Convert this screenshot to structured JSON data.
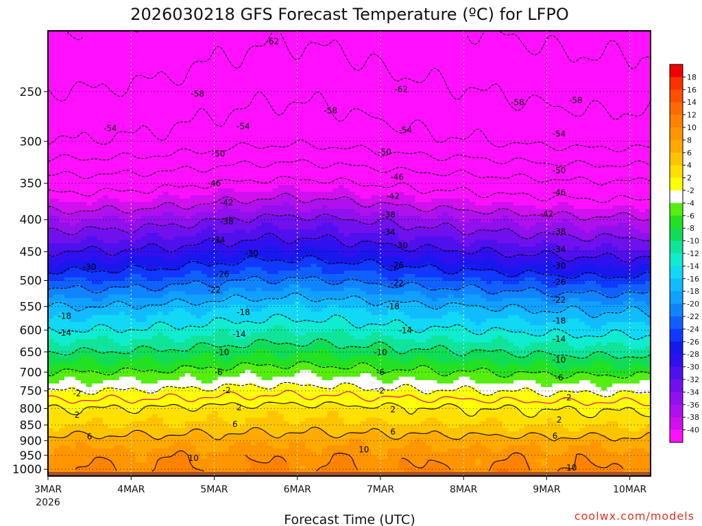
{
  "chart_data": {
    "type": "heatmap",
    "title": "2026030218 GFS Forecast Temperature (ºC) for LFPO",
    "xlabel": "Forecast Time (UTC)",
    "ylabel": "",
    "yscale": "log",
    "ylim": [
      1025,
      200
    ],
    "y_ticks": [
      250,
      300,
      350,
      400,
      450,
      500,
      550,
      600,
      650,
      700,
      750,
      800,
      850,
      900,
      950,
      1000
    ],
    "x_ticks": [
      "3MAR",
      "4MAR",
      "5MAR",
      "6MAR",
      "7MAR",
      "8MAR",
      "9MAR",
      "10MAR"
    ],
    "x_tick_sublabel": "2026",
    "grid": true,
    "levels_hpa": [
      250,
      300,
      350,
      400,
      450,
      500,
      550,
      600,
      650,
      700,
      750,
      800,
      850,
      900,
      950,
      1000
    ],
    "representative_temperature_c": [
      -58,
      -54,
      -44,
      -36,
      -30,
      -24,
      -18,
      -14,
      -10,
      -6,
      -2,
      2,
      4,
      7,
      9,
      10
    ],
    "contours_c": [
      -62,
      -58,
      -54,
      -50,
      -46,
      -42,
      -38,
      -34,
      -30,
      -26,
      -22,
      -18,
      -14,
      -10,
      -6,
      -2,
      2,
      6,
      10
    ],
    "contour_labels": [
      {
        "text": "-62",
        "day": 5.7,
        "p": 208
      },
      {
        "text": "-62",
        "day": 7.25,
        "p": 248
      },
      {
        "text": "-58",
        "day": 4.8,
        "p": 252
      },
      {
        "text": "-58",
        "day": 6.4,
        "p": 268
      },
      {
        "text": "-58",
        "day": 8.65,
        "p": 260
      },
      {
        "text": "-58",
        "day": 9.35,
        "p": 258
      },
      {
        "text": "-54",
        "day": 3.75,
        "p": 286
      },
      {
        "text": "-54",
        "day": 5.35,
        "p": 284
      },
      {
        "text": "-54",
        "day": 7.3,
        "p": 288
      },
      {
        "text": "-54",
        "day": 9.15,
        "p": 292
      },
      {
        "text": "-50",
        "day": 5.05,
        "p": 314
      },
      {
        "text": "-50",
        "day": 7.05,
        "p": 312
      },
      {
        "text": "-50",
        "day": 9.15,
        "p": 334
      },
      {
        "text": "-46",
        "day": 5.0,
        "p": 350
      },
      {
        "text": "-46",
        "day": 7.2,
        "p": 342
      },
      {
        "text": "-46",
        "day": 9.15,
        "p": 362
      },
      {
        "text": "-42",
        "day": 5.15,
        "p": 376
      },
      {
        "text": "-42",
        "day": 7.15,
        "p": 367
      },
      {
        "text": "-42",
        "day": 9.0,
        "p": 392
      },
      {
        "text": "-38",
        "day": 5.15,
        "p": 403
      },
      {
        "text": "-38",
        "day": 7.1,
        "p": 393
      },
      {
        "text": "-38",
        "day": 9.15,
        "p": 418
      },
      {
        "text": "-34",
        "day": 5.05,
        "p": 431
      },
      {
        "text": "-34",
        "day": 7.1,
        "p": 419
      },
      {
        "text": "-34",
        "day": 9.15,
        "p": 446
      },
      {
        "text": "-30",
        "day": 3.5,
        "p": 476
      },
      {
        "text": "-30",
        "day": 5.45,
        "p": 453
      },
      {
        "text": "-30",
        "day": 7.25,
        "p": 440
      },
      {
        "text": "-30",
        "day": 9.15,
        "p": 474
      },
      {
        "text": "-26",
        "day": 5.1,
        "p": 489
      },
      {
        "text": "-26",
        "day": 7.2,
        "p": 473
      },
      {
        "text": "-26",
        "day": 9.15,
        "p": 503
      },
      {
        "text": "-22",
        "day": 5.0,
        "p": 518
      },
      {
        "text": "-22",
        "day": 7.2,
        "p": 505
      },
      {
        "text": "-22",
        "day": 9.15,
        "p": 537
      },
      {
        "text": "-18",
        "day": 3.2,
        "p": 570
      },
      {
        "text": "-18",
        "day": 5.35,
        "p": 562
      },
      {
        "text": "-18",
        "day": 7.15,
        "p": 550
      },
      {
        "text": "-18",
        "day": 9.15,
        "p": 580
      },
      {
        "text": "-14",
        "day": 3.2,
        "p": 606
      },
      {
        "text": "-14",
        "day": 5.3,
        "p": 609
      },
      {
        "text": "-14",
        "day": 7.3,
        "p": 601
      },
      {
        "text": "-14",
        "day": 9.15,
        "p": 620
      },
      {
        "text": "-10",
        "day": 5.1,
        "p": 651
      },
      {
        "text": "-10",
        "day": 7.0,
        "p": 651
      },
      {
        "text": "-10",
        "day": 9.15,
        "p": 669
      },
      {
        "text": "-6",
        "day": 5.05,
        "p": 700
      },
      {
        "text": "-6",
        "day": 7.0,
        "p": 700
      },
      {
        "text": "-6",
        "day": 9.15,
        "p": 715
      },
      {
        "text": "-2",
        "day": 3.35,
        "p": 757
      },
      {
        "text": "-2",
        "day": 5.15,
        "p": 749
      },
      {
        "text": "-2",
        "day": 7.0,
        "p": 750
      },
      {
        "text": "-2",
        "day": 9.25,
        "p": 769
      },
      {
        "text": "2",
        "day": 3.35,
        "p": 820
      },
      {
        "text": "2",
        "day": 5.3,
        "p": 797
      },
      {
        "text": "2",
        "day": 7.15,
        "p": 803
      },
      {
        "text": "2",
        "day": 9.15,
        "p": 834
      },
      {
        "text": "6",
        "day": 3.5,
        "p": 887
      },
      {
        "text": "6",
        "day": 5.25,
        "p": 848
      },
      {
        "text": "6",
        "day": 7.15,
        "p": 872
      },
      {
        "text": "6",
        "day": 9.1,
        "p": 885
      },
      {
        "text": "10",
        "day": 4.75,
        "p": 960
      },
      {
        "text": "10",
        "day": 6.8,
        "p": 930
      },
      {
        "text": "10",
        "day": 9.3,
        "p": 995
      }
    ],
    "colorbar": {
      "labels": [
        "18",
        "16",
        "14",
        "12",
        "10",
        "8",
        "6",
        "4",
        "2",
        "-2",
        "-4",
        "-6",
        "-8",
        "-10",
        "-12",
        "-14",
        "-16",
        "-18",
        "-20",
        "-22",
        "-24",
        "-26",
        "-28",
        "-30",
        "-32",
        "-34",
        "-36",
        "-38",
        "-40"
      ],
      "colors": [
        "#f00000",
        "#ff3000",
        "#ff5000",
        "#ff6a00",
        "#ff8200",
        "#ff9600",
        "#ffaa00",
        "#ffc400",
        "#ffe000",
        "#ffff00",
        "#ffffff",
        "#55ee10",
        "#22e022",
        "#10dd55",
        "#10e49a",
        "#10ecd0",
        "#10d8f5",
        "#10bcff",
        "#10a0ff",
        "#1084ff",
        "#1060ff",
        "#1038ff",
        "#1818ee",
        "#3010ee",
        "#5010ee",
        "#7010ee",
        "#9010ee",
        "#b010ee",
        "#d010ee",
        "#ff10ff"
      ]
    },
    "ground_color": "#a0522d",
    "contour_color_negative": "#000000",
    "freezing_line_color": "#e0107a"
  },
  "credit": "coolwx.com/models"
}
